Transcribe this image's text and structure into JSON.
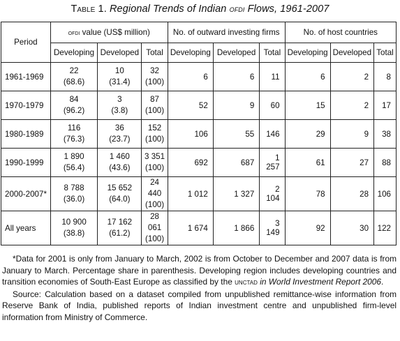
{
  "title": {
    "label": "Table 1.",
    "text": "Regional Trends of Indian",
    "abbr": "OFDI",
    "tail": "Flows, 1961-2007"
  },
  "headers": {
    "period": "Period",
    "ofdi_prefix": "OFDI",
    "ofdi_rest": "value (US$ million)",
    "firms": "No. of outward investing firms",
    "hosts": "No. of host countries",
    "sub": [
      "Developing",
      "Developed",
      "Total",
      "Developing",
      "Developed",
      "Total",
      "Developing",
      "Developed",
      "Total"
    ]
  },
  "rows": [
    {
      "period": "1961-1969",
      "ofdi_dev": "22",
      "ofdi_dev_pct": "(68.6)",
      "ofdi_dvd": "10",
      "ofdi_dvd_pct": "(31.4)",
      "ofdi_tot": "32",
      "ofdi_tot_pct": "(100)",
      "firms_dev": "6",
      "firms_dvd": "6",
      "firms_tot": "11",
      "host_dev": "6",
      "host_dvd": "2",
      "host_tot": "8"
    },
    {
      "period": "1970-1979",
      "ofdi_dev": "84",
      "ofdi_dev_pct": "(96.2)",
      "ofdi_dvd": "3",
      "ofdi_dvd_pct": "(3.8)",
      "ofdi_tot": "87",
      "ofdi_tot_pct": "(100)",
      "firms_dev": "52",
      "firms_dvd": "9",
      "firms_tot": "60",
      "host_dev": "15",
      "host_dvd": "2",
      "host_tot": "17"
    },
    {
      "period": "1980-1989",
      "ofdi_dev": "116",
      "ofdi_dev_pct": "(76.3)",
      "ofdi_dvd": "36",
      "ofdi_dvd_pct": "(23.7)",
      "ofdi_tot": "152",
      "ofdi_tot_pct": "(100)",
      "firms_dev": "106",
      "firms_dvd": "55",
      "firms_tot": "146",
      "host_dev": "29",
      "host_dvd": "9",
      "host_tot": "38"
    },
    {
      "period": "1990-1999",
      "ofdi_dev": "1 890",
      "ofdi_dev_pct": "(56.4)",
      "ofdi_dvd": "1 460",
      "ofdi_dvd_pct": "(43.6)",
      "ofdi_tot": "3 351",
      "ofdi_tot_pct": "(100)",
      "firms_dev": "692",
      "firms_dvd": "687",
      "firms_tot": "1 257",
      "host_dev": "61",
      "host_dvd": "27",
      "host_tot": "88"
    },
    {
      "period": "2000-2007*",
      "ofdi_dev": "8 788",
      "ofdi_dev_pct": "(36.0)",
      "ofdi_dvd": "15 652",
      "ofdi_dvd_pct": "(64.0)",
      "ofdi_tot": "24 440",
      "ofdi_tot_pct": "(100)",
      "firms_dev": "1 012",
      "firms_dvd": "1 327",
      "firms_tot": "2 104",
      "host_dev": "78",
      "host_dvd": "28",
      "host_tot": "106"
    },
    {
      "period": "All years",
      "ofdi_dev": "10 900",
      "ofdi_dev_pct": "(38.8)",
      "ofdi_dvd": "17 162",
      "ofdi_dvd_pct": "(61.2)",
      "ofdi_tot": "28 061",
      "ofdi_tot_pct": "(100)",
      "firms_dev": "1 674",
      "firms_dvd": "1 866",
      "firms_tot": "3 149",
      "host_dev": "92",
      "host_dvd": "30",
      "host_tot": "122"
    }
  ],
  "notes": {
    "n1_a": "*Data for 2001 is only from January to March, 2002 is from October to December and 2007 data is from January to March. Percentage share in parenthesis. Developing region includes developing countries and transition economies of South-East Europe as classified by the",
    "n1_abbr": "UNCTAD",
    "n1_b": "in World Investment Report 2006",
    "n1_c": ".",
    "n2": "Source: Calculation based on a dataset compiled from unpublished remittance-wise information from Reserve Bank of India, published reports of Indian investment centre and unpublished firm-level information from Ministry of Commerce."
  }
}
